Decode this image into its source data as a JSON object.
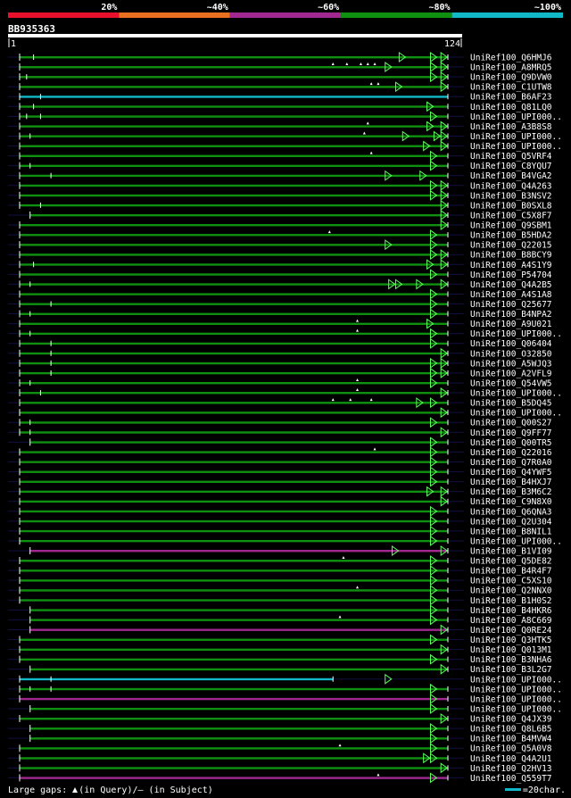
{
  "chart_data": {
    "type": "alignment-overview",
    "title": "BB935363",
    "query_length": 124,
    "axis": {
      "start_label": "1",
      "end_label": "124"
    },
    "identity_legend": [
      {
        "label": "20%",
        "color": "#e8102a"
      },
      {
        "label": "~40%",
        "color": "#e87020"
      },
      {
        "label": "~60%",
        "color": "#a02890"
      },
      {
        "label": "~80%",
        "color": "#109010"
      },
      {
        "label": "~100%",
        "color": "#10b8c8"
      }
    ],
    "hits": [
      {
        "name": "UniRef100_Q6HMJ6",
        "start": 1,
        "end": 124,
        "color": "#109010",
        "marks": [
          5,
          110,
          119,
          122
        ]
      },
      {
        "name": "UniRef100_A8MRQ5",
        "start": 1,
        "end": 124,
        "color": "#109010",
        "marks": [
          91,
          95,
          99,
          101,
          103,
          106,
          119,
          122
        ]
      },
      {
        "name": "UniRef100_Q9DVW0",
        "start": 1,
        "end": 124,
        "color": "#109010",
        "marks": [
          3,
          119,
          122
        ]
      },
      {
        "name": "UniRef100_C1UTW8",
        "start": 1,
        "end": 124,
        "color": "#109010",
        "marks": [
          102,
          104,
          109,
          122
        ]
      },
      {
        "name": "UniRef100_B6AF23",
        "start": 1,
        "end": 124,
        "color": "#10b8c8",
        "marks": [
          7
        ]
      },
      {
        "name": "UniRef100_Q81LQ0",
        "start": 1,
        "end": 124,
        "color": "#109010",
        "marks": [
          5,
          118
        ]
      },
      {
        "name": "UniRef100_UPI000..",
        "start": 1,
        "end": 124,
        "color": "#109010",
        "marks": [
          3,
          7,
          119
        ]
      },
      {
        "name": "UniRef100_A3B8S8",
        "start": 1,
        "end": 124,
        "color": "#109010",
        "marks": [
          101,
          118,
          122
        ]
      },
      {
        "name": "UniRef100_UPI000..",
        "start": 1,
        "end": 124,
        "color": "#109010",
        "marks": [
          4,
          100,
          111,
          120,
          122
        ]
      },
      {
        "name": "UniRef100_UPI000..",
        "start": 1,
        "end": 124,
        "color": "#109010",
        "marks": [
          117,
          122
        ]
      },
      {
        "name": "UniRef100_Q5VRF4",
        "start": 1,
        "end": 124,
        "color": "#109010",
        "marks": [
          102,
          119
        ]
      },
      {
        "name": "UniRef100_C8YQU7",
        "start": 1,
        "end": 124,
        "color": "#109010",
        "marks": [
          4,
          119
        ]
      },
      {
        "name": "UniRef100_B4VGA2",
        "start": 1,
        "end": 124,
        "color": "#109010",
        "marks": [
          10,
          106,
          116
        ]
      },
      {
        "name": "UniRef100_Q4A263",
        "start": 1,
        "end": 124,
        "color": "#109010",
        "marks": [
          119,
          122
        ]
      },
      {
        "name": "UniRef100_B3NSV2",
        "start": 1,
        "end": 124,
        "color": "#109010",
        "marks": [
          119,
          122
        ]
      },
      {
        "name": "UniRef100_B0SXL8",
        "start": 1,
        "end": 124,
        "color": "#109010",
        "marks": [
          7,
          122
        ]
      },
      {
        "name": "UniRef100_C5X8F7",
        "start": 4,
        "end": 124,
        "color": "#109010",
        "marks": [
          122
        ]
      },
      {
        "name": "UniRef100_Q9SBM1",
        "start": 1,
        "end": 124,
        "color": "#109010",
        "marks": [
          122
        ]
      },
      {
        "name": "UniRef100_B5HDA2",
        "start": 1,
        "end": 124,
        "color": "#109010",
        "marks": [
          90,
          119
        ]
      },
      {
        "name": "UniRef100_Q22015",
        "start": 1,
        "end": 124,
        "color": "#109010",
        "marks": [
          106,
          119
        ]
      },
      {
        "name": "UniRef100_B8BCY9",
        "start": 1,
        "end": 124,
        "color": "#109010",
        "marks": [
          119,
          122
        ]
      },
      {
        "name": "UniRef100_A4S1Y9",
        "start": 1,
        "end": 124,
        "color": "#109010",
        "marks": [
          5,
          118,
          122
        ]
      },
      {
        "name": "UniRef100_P54704",
        "start": 1,
        "end": 124,
        "color": "#109010",
        "marks": [
          119
        ]
      },
      {
        "name": "UniRef100_Q4A2B5",
        "start": 1,
        "end": 124,
        "color": "#109010",
        "marks": [
          4,
          107,
          109,
          115,
          122
        ]
      },
      {
        "name": "UniRef100_A4S1A8",
        "start": 1,
        "end": 124,
        "color": "#109010",
        "marks": [
          119
        ]
      },
      {
        "name": "UniRef100_Q25677",
        "start": 1,
        "end": 124,
        "color": "#109010",
        "marks": [
          10,
          119
        ]
      },
      {
        "name": "UniRef100_B4NPA2",
        "start": 1,
        "end": 124,
        "color": "#109010",
        "marks": [
          4,
          119
        ]
      },
      {
        "name": "UniRef100_A9U021",
        "start": 1,
        "end": 124,
        "color": "#109010",
        "marks": [
          98,
          118
        ]
      },
      {
        "name": "UniRef100_UPI000..",
        "start": 1,
        "end": 124,
        "color": "#109010",
        "marks": [
          4,
          98,
          119
        ]
      },
      {
        "name": "UniRef100_Q06404",
        "start": 1,
        "end": 124,
        "color": "#109010",
        "marks": [
          10,
          119
        ]
      },
      {
        "name": "UniRef100_O32850",
        "start": 1,
        "end": 124,
        "color": "#109010",
        "marks": [
          10,
          122
        ]
      },
      {
        "name": "UniRef100_A5WJQ3",
        "start": 1,
        "end": 124,
        "color": "#109010",
        "marks": [
          10,
          119,
          122
        ]
      },
      {
        "name": "UniRef100_A2VFL9",
        "start": 1,
        "end": 124,
        "color": "#109010",
        "marks": [
          10,
          119,
          122
        ]
      },
      {
        "name": "UniRef100_Q54VW5",
        "start": 1,
        "end": 124,
        "color": "#109010",
        "marks": [
          4,
          98,
          119
        ]
      },
      {
        "name": "UniRef100_UPI000..",
        "start": 1,
        "end": 124,
        "color": "#109010",
        "marks": [
          7,
          98,
          122
        ]
      },
      {
        "name": "UniRef100_B5DQ45",
        "start": 1,
        "end": 124,
        "color": "#109010",
        "marks": [
          91,
          96,
          102,
          115,
          119
        ]
      },
      {
        "name": "UniRef100_UPI000..",
        "start": 1,
        "end": 124,
        "color": "#109010",
        "marks": [
          122
        ]
      },
      {
        "name": "UniRef100_Q00S27",
        "start": 1,
        "end": 124,
        "color": "#109010",
        "marks": [
          4,
          119
        ]
      },
      {
        "name": "UniRef100_Q9FF77",
        "start": 1,
        "end": 124,
        "color": "#109010",
        "marks": [
          4,
          122
        ]
      },
      {
        "name": "UniRef100_Q00TR5",
        "start": 4,
        "end": 124,
        "color": "#109010",
        "marks": [
          119
        ]
      },
      {
        "name": "UniRef100_Q22016",
        "start": 1,
        "end": 124,
        "color": "#109010",
        "marks": [
          103,
          119
        ]
      },
      {
        "name": "UniRef100_Q7R0A0",
        "start": 1,
        "end": 124,
        "color": "#109010",
        "marks": [
          119
        ]
      },
      {
        "name": "UniRef100_Q4YWF5",
        "start": 1,
        "end": 124,
        "color": "#109010",
        "marks": [
          119
        ]
      },
      {
        "name": "UniRef100_B4HXJ7",
        "start": 1,
        "end": 124,
        "color": "#109010",
        "marks": [
          119
        ]
      },
      {
        "name": "UniRef100_B3M6C2",
        "start": 1,
        "end": 124,
        "color": "#109010",
        "marks": [
          118,
          122
        ]
      },
      {
        "name": "UniRef100_C9N8X0",
        "start": 1,
        "end": 124,
        "color": "#109010",
        "marks": [
          122
        ]
      },
      {
        "name": "UniRef100_Q6QNA3",
        "start": 1,
        "end": 124,
        "color": "#109010",
        "marks": [
          119
        ]
      },
      {
        "name": "UniRef100_Q2U304",
        "start": 1,
        "end": 124,
        "color": "#109010",
        "marks": [
          119
        ]
      },
      {
        "name": "UniRef100_B8NIL1",
        "start": 1,
        "end": 124,
        "color": "#109010",
        "marks": [
          119
        ]
      },
      {
        "name": "UniRef100_UPI000..",
        "start": 1,
        "end": 124,
        "color": "#109010",
        "marks": [
          119
        ]
      },
      {
        "name": "UniRef100_B1VI09",
        "start": 4,
        "end": 124,
        "color": "#a02890",
        "marks": [
          108,
          122
        ]
      },
      {
        "name": "UniRef100_Q5DE82",
        "start": 1,
        "end": 124,
        "color": "#109010",
        "marks": [
          94,
          119
        ]
      },
      {
        "name": "UniRef100_B4R4F7",
        "start": 1,
        "end": 124,
        "color": "#109010",
        "marks": [
          119
        ]
      },
      {
        "name": "UniRef100_C5XS10",
        "start": 1,
        "end": 124,
        "color": "#109010",
        "marks": [
          119
        ]
      },
      {
        "name": "UniRef100_Q2NNX0",
        "start": 1,
        "end": 124,
        "color": "#109010",
        "marks": [
          98,
          119
        ]
      },
      {
        "name": "UniRef100_B1H0S2",
        "start": 1,
        "end": 124,
        "color": "#109010",
        "marks": [
          119
        ]
      },
      {
        "name": "UniRef100_B4HKR6",
        "start": 4,
        "end": 124,
        "color": "#109010",
        "marks": [
          119
        ]
      },
      {
        "name": "UniRef100_A8C669",
        "start": 4,
        "end": 124,
        "color": "#109010",
        "marks": [
          93,
          119
        ]
      },
      {
        "name": "UniRef100_Q0RE24",
        "start": 4,
        "end": 124,
        "color": "#a02890",
        "marks": [
          122
        ]
      },
      {
        "name": "UniRef100_Q3HTK5",
        "start": 1,
        "end": 124,
        "color": "#109010",
        "marks": [
          119
        ]
      },
      {
        "name": "UniRef100_Q013M1",
        "start": 1,
        "end": 124,
        "color": "#109010",
        "marks": [
          122
        ]
      },
      {
        "name": "UniRef100_B3NHA6",
        "start": 1,
        "end": 124,
        "color": "#109010",
        "marks": [
          119
        ]
      },
      {
        "name": "UniRef100_B3L2G7",
        "start": 4,
        "end": 124,
        "color": "#109010",
        "marks": [
          122
        ]
      },
      {
        "name": "UniRef100_UPI000..",
        "start": 1,
        "end": 91,
        "color": "#10b8c8",
        "marks": [
          10,
          106
        ]
      },
      {
        "name": "UniRef100_UPI000..",
        "start": 1,
        "end": 124,
        "color": "#109010",
        "marks": [
          4,
          10,
          119
        ]
      },
      {
        "name": "UniRef100_UPI000..",
        "start": 1,
        "end": 124,
        "color": "#a02890",
        "marks": [
          119
        ]
      },
      {
        "name": "UniRef100_UPI000..",
        "start": 4,
        "end": 124,
        "color": "#109010",
        "marks": [
          119
        ]
      },
      {
        "name": "UniRef100_Q4JX39",
        "start": 1,
        "end": 124,
        "color": "#109010",
        "marks": [
          122
        ]
      },
      {
        "name": "UniRef100_Q8L6B5",
        "start": 4,
        "end": 124,
        "color": "#109010",
        "marks": [
          119
        ]
      },
      {
        "name": "UniRef100_B4MVW4",
        "start": 4,
        "end": 124,
        "color": "#109010",
        "marks": [
          119
        ]
      },
      {
        "name": "UniRef100_Q5A0V8",
        "start": 1,
        "end": 124,
        "color": "#109010",
        "marks": [
          93,
          119
        ]
      },
      {
        "name": "UniRef100_Q4A2U1",
        "start": 1,
        "end": 124,
        "color": "#109010",
        "marks": [
          117,
          119
        ]
      },
      {
        "name": "UniRef100_Q2HV13",
        "start": 1,
        "end": 124,
        "color": "#109010",
        "marks": [
          122
        ]
      },
      {
        "name": "UniRef100_Q559T7",
        "start": 1,
        "end": 124,
        "color": "#a02890",
        "marks": [
          104,
          119
        ]
      }
    ]
  },
  "footer": {
    "gaps_label": "Large gaps:",
    "query_gap_label": "(in Query)/",
    "subject_gap_symbol": "–",
    "subject_gap_label": " (in Subject)",
    "scale_color": "#10b8c8",
    "scale_label": "=20char."
  }
}
